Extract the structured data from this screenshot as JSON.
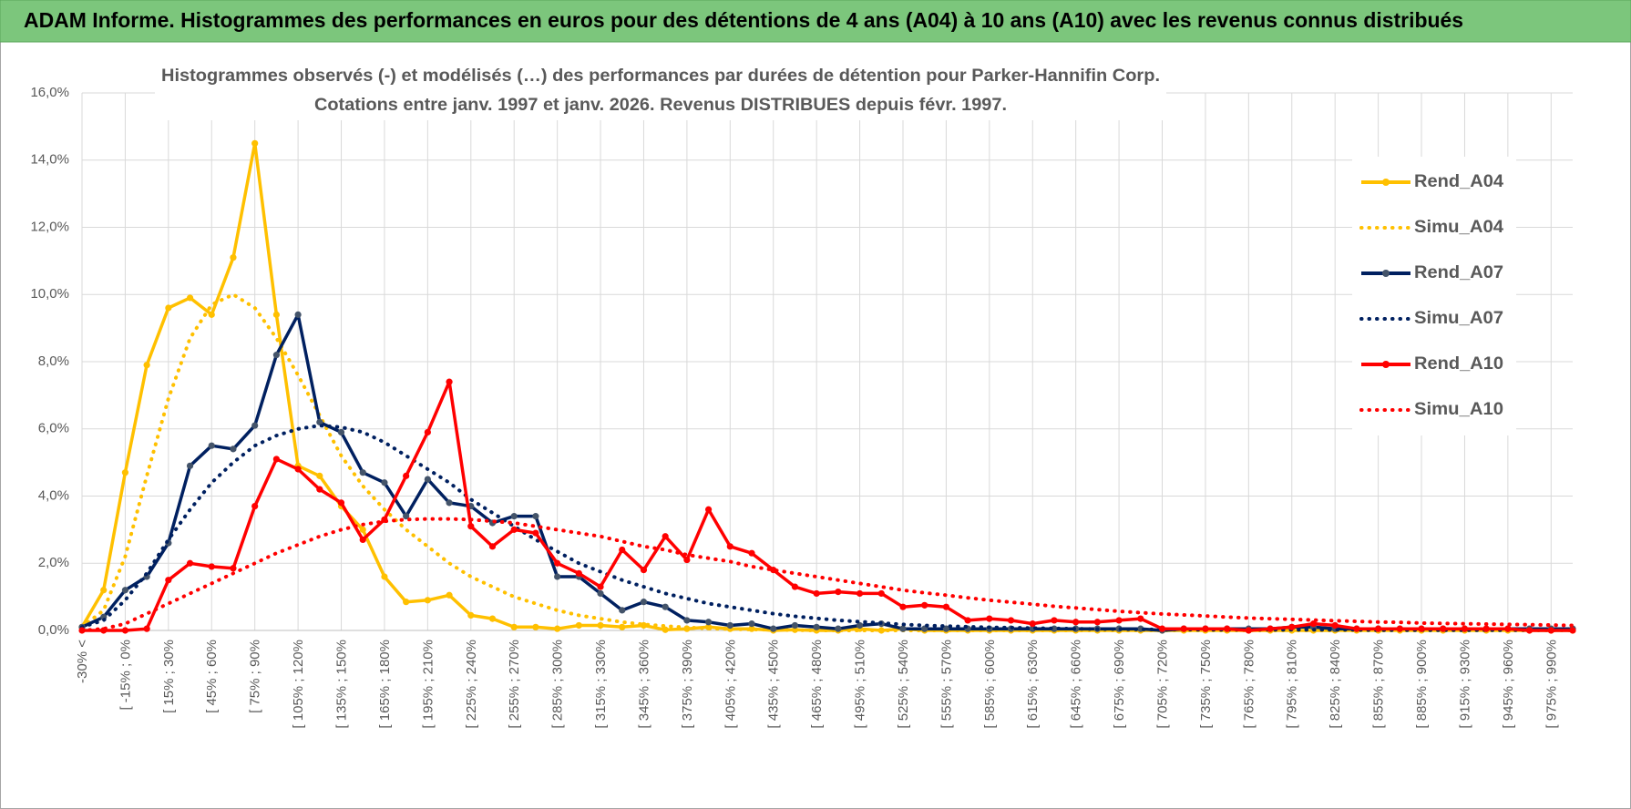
{
  "chart_data": {
    "type": "line",
    "title": "ADAM Informe. Histogrammes des performances en euros pour des détentions de 4 ans (A04) à 10 ans (A10) avec les revenus connus distribués",
    "subtitle": [
      "Histogrammes observés (-) et modélisés (…) des performances par durées de détention pour Parker-Hannifin Corp.",
      "Cotations entre janv. 1997 et janv. 2026. Revenus DISTRIBUES depuis févr. 1997."
    ],
    "categories": [
      "-30% <",
      null,
      "[ -15% ; 0%",
      null,
      "[ 15% ; 30%",
      null,
      "[ 45% ; 60%",
      null,
      "[ 75% ; 90%",
      null,
      "[ 105% ; 120%",
      null,
      "[ 135% ; 150%",
      null,
      "[ 165% ; 180%",
      null,
      "[ 195% ; 210%",
      null,
      "[ 225% ; 240%",
      null,
      "[ 255% ; 270%",
      null,
      "[ 285% ; 300%",
      null,
      "[ 315% ; 330%",
      null,
      "[ 345% ; 360%",
      null,
      "[ 375% ; 390%",
      null,
      "[ 405% ; 420%",
      null,
      "[ 435% ; 450%",
      null,
      "[ 465% ; 480%",
      null,
      "[ 495% ; 510%",
      null,
      "[ 525% ; 540%",
      null,
      "[ 555% ; 570%",
      null,
      "[ 585% ; 600%",
      null,
      "[ 615% ; 630%",
      null,
      "[ 645% ; 660%",
      null,
      "[ 675% ; 690%",
      null,
      "[ 705% ; 720%",
      null,
      "[ 735% ; 750%",
      null,
      "[ 765% ; 780%",
      null,
      "[ 795% ; 810%",
      null,
      "[ 825% ; 840%",
      null,
      "[ 855% ; 870%",
      null,
      "[ 885% ; 900%",
      null,
      "[ 915% ; 930%",
      null,
      "[ 945% ; 960%",
      null,
      "[ 975% ; 990%",
      null
    ],
    "series": [
      {
        "name": "Rend_A04",
        "color": "#ffc000",
        "dash": "solid",
        "markers": true,
        "values": [
          0.1,
          1.2,
          4.7,
          7.9,
          9.6,
          9.9,
          9.4,
          11.1,
          14.5,
          9.4,
          4.9,
          4.6,
          3.7,
          3.0,
          1.6,
          0.85,
          0.9,
          1.05,
          0.45,
          0.35,
          0.1,
          0.1,
          0.05,
          0.15,
          0.15,
          0.1,
          0.15,
          0.02,
          0.05,
          0.1,
          0.05,
          0.05,
          0,
          0.02,
          0,
          0,
          0.05,
          0,
          0.05,
          0,
          0,
          0,
          0,
          0,
          0,
          0,
          0,
          0,
          0,
          0,
          0,
          0,
          0,
          0,
          0,
          0,
          0,
          0,
          0,
          0,
          0,
          0,
          0,
          0,
          0,
          0,
          0,
          0,
          0,
          0
        ]
      },
      {
        "name": "Simu_A04",
        "color": "#ffc000",
        "dash": "dotted",
        "markers": false,
        "values": [
          0.1,
          0.6,
          2.2,
          4.6,
          6.9,
          8.7,
          9.7,
          10.0,
          9.6,
          8.7,
          7.6,
          6.4,
          5.2,
          4.3,
          3.6,
          3.0,
          2.5,
          2.0,
          1.6,
          1.3,
          1.0,
          0.8,
          0.6,
          0.45,
          0.35,
          0.25,
          0.18,
          0.13,
          0.09,
          0.06,
          0.04,
          0.03,
          0.02,
          0.01,
          0,
          0,
          0,
          0,
          0,
          0,
          0,
          0,
          0,
          0,
          0,
          0,
          0,
          0,
          0,
          0,
          0,
          0,
          0,
          0,
          0,
          0,
          0,
          0,
          0,
          0,
          0,
          0,
          0,
          0,
          0,
          0,
          0,
          0,
          0,
          0
        ]
      },
      {
        "name": "Rend_A07",
        "color": "#002060",
        "marker_color": "#44546a",
        "dash": "solid",
        "markers": true,
        "values": [
          0.1,
          0.4,
          1.2,
          1.6,
          2.6,
          4.9,
          5.5,
          5.4,
          6.1,
          8.2,
          9.4,
          6.2,
          5.9,
          4.7,
          4.4,
          3.4,
          4.5,
          3.8,
          3.7,
          3.2,
          3.4,
          3.4,
          1.6,
          1.6,
          1.1,
          0.6,
          0.85,
          0.7,
          0.3,
          0.25,
          0.15,
          0.2,
          0.05,
          0.15,
          0.1,
          0.05,
          0.15,
          0.2,
          0.05,
          0.05,
          0.05,
          0.05,
          0.05,
          0.05,
          0.05,
          0.05,
          0.05,
          0.05,
          0.05,
          0.05,
          0,
          0.05,
          0.05,
          0.05,
          0.05,
          0.05,
          0.1,
          0.1,
          0.05,
          0.05,
          0.05,
          0.05,
          0.05,
          0.05,
          0.05,
          0.05,
          0.05,
          0.05,
          0.05,
          0.05
        ]
      },
      {
        "name": "Simu_A07",
        "color": "#002060",
        "dash": "dotted",
        "markers": false,
        "values": [
          0.1,
          0.3,
          0.9,
          1.7,
          2.7,
          3.6,
          4.4,
          5.0,
          5.5,
          5.8,
          6.0,
          6.1,
          6.05,
          5.9,
          5.6,
          5.2,
          4.8,
          4.4,
          3.9,
          3.5,
          3.1,
          2.7,
          2.35,
          2.0,
          1.75,
          1.5,
          1.3,
          1.1,
          0.95,
          0.8,
          0.7,
          0.6,
          0.5,
          0.42,
          0.36,
          0.3,
          0.26,
          0.22,
          0.18,
          0.15,
          0.13,
          0.11,
          0.09,
          0.08,
          0.07,
          0.06,
          0.05,
          0.04,
          0.04,
          0.03,
          0.03,
          0.03,
          0.02,
          0.02,
          0.02,
          0.02,
          0.02,
          0.02,
          0.02,
          0.02,
          0.01,
          0.01,
          0.01,
          0.01,
          0.01,
          0.01,
          0.01,
          0.01,
          0.01,
          0.01
        ]
      },
      {
        "name": "Rend_A10",
        "color": "#ff0000",
        "dash": "solid",
        "markers": true,
        "values": [
          0,
          0,
          0,
          0.05,
          1.5,
          2.0,
          1.9,
          1.85,
          3.7,
          5.1,
          4.8,
          4.2,
          3.8,
          2.7,
          3.3,
          4.6,
          5.9,
          7.4,
          3.1,
          2.5,
          3.0,
          2.9,
          2.0,
          1.7,
          1.3,
          2.4,
          1.8,
          2.8,
          2.1,
          3.6,
          2.5,
          2.3,
          1.8,
          1.3,
          1.1,
          1.15,
          1.1,
          1.1,
          0.7,
          0.75,
          0.7,
          0.3,
          0.35,
          0.3,
          0.2,
          0.3,
          0.25,
          0.25,
          0.3,
          0.35,
          0.05,
          0.05,
          0.05,
          0.05,
          0,
          0.05,
          0.1,
          0.2,
          0.15,
          0.05,
          0.05,
          0.05,
          0.05,
          0.05,
          0.05,
          0.05,
          0.05,
          0,
          0,
          0
        ]
      },
      {
        "name": "Simu_A10",
        "color": "#ff0000",
        "dash": "dotted",
        "markers": false,
        "values": [
          0,
          0.05,
          0.2,
          0.5,
          0.8,
          1.1,
          1.4,
          1.7,
          2.0,
          2.3,
          2.55,
          2.8,
          3.0,
          3.15,
          3.25,
          3.3,
          3.32,
          3.32,
          3.3,
          3.25,
          3.2,
          3.1,
          3.0,
          2.9,
          2.8,
          2.65,
          2.5,
          2.4,
          2.25,
          2.15,
          2.05,
          1.9,
          1.8,
          1.7,
          1.6,
          1.5,
          1.4,
          1.3,
          1.2,
          1.12,
          1.05,
          0.97,
          0.9,
          0.84,
          0.78,
          0.72,
          0.67,
          0.62,
          0.57,
          0.53,
          0.49,
          0.46,
          0.43,
          0.4,
          0.37,
          0.35,
          0.33,
          0.31,
          0.29,
          0.27,
          0.25,
          0.24,
          0.22,
          0.21,
          0.2,
          0.19,
          0.18,
          0.17,
          0.16,
          0.15
        ]
      }
    ],
    "ylim": [
      0,
      16
    ],
    "yticks": [
      {
        "value": 0,
        "label": "0,0%"
      },
      {
        "value": 2,
        "label": "2,0%"
      },
      {
        "value": 4,
        "label": "4,0%"
      },
      {
        "value": 6,
        "label": "6,0%"
      },
      {
        "value": 8,
        "label": "8,0%"
      },
      {
        "value": 10,
        "label": "10,0%"
      },
      {
        "value": 12,
        "label": "12,0%"
      },
      {
        "value": 14,
        "label": "14,0%"
      },
      {
        "value": 16,
        "label": "16,0%"
      }
    ],
    "grid": true,
    "legend": "right"
  }
}
